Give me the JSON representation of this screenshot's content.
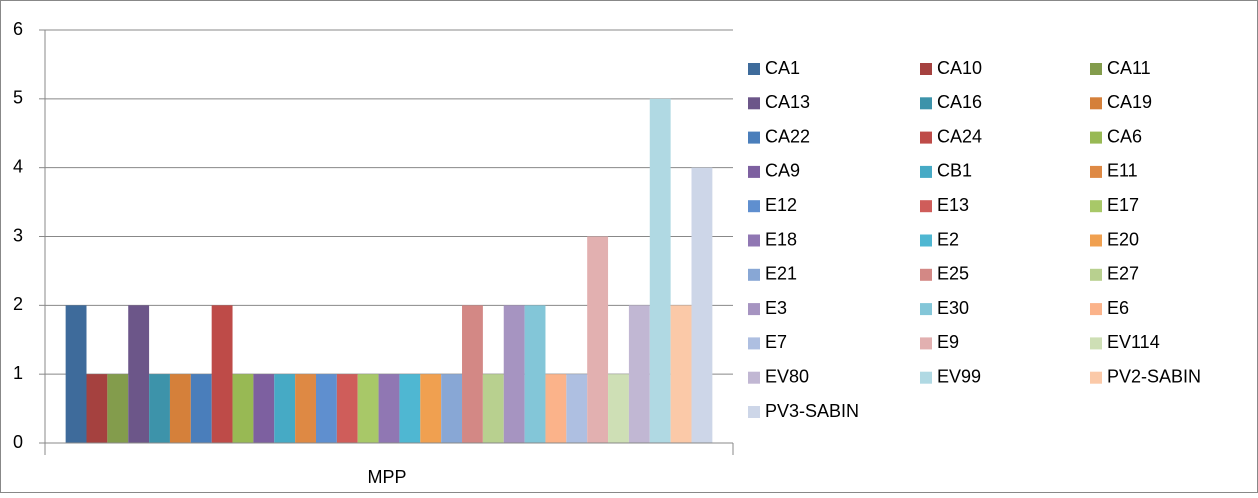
{
  "chart_data": {
    "type": "bar",
    "categories": [
      "MPP"
    ],
    "series": [
      {
        "name": "CA1",
        "color": "#3e6b9b",
        "values": [
          2
        ]
      },
      {
        "name": "CA10",
        "color": "#a5413f",
        "values": [
          1
        ]
      },
      {
        "name": "CA11",
        "color": "#839c4c",
        "values": [
          1
        ]
      },
      {
        "name": "CA13",
        "color": "#6c5689",
        "values": [
          2
        ]
      },
      {
        "name": "CA16",
        "color": "#3d93aa",
        "values": [
          1
        ]
      },
      {
        "name": "CA19",
        "color": "#d5803a",
        "values": [
          1
        ]
      },
      {
        "name": "CA22",
        "color": "#4a7ebb",
        "values": [
          1
        ]
      },
      {
        "name": "CA24",
        "color": "#be4b48",
        "values": [
          2
        ]
      },
      {
        "name": "CA6",
        "color": "#98b954",
        "values": [
          1
        ]
      },
      {
        "name": "CA9",
        "color": "#7d60a0",
        "values": [
          1
        ]
      },
      {
        "name": "CB1",
        "color": "#46aac5",
        "values": [
          1
        ]
      },
      {
        "name": "E11",
        "color": "#de8944",
        "values": [
          1
        ]
      },
      {
        "name": "E12",
        "color": "#5f8fcf",
        "values": [
          1
        ]
      },
      {
        "name": "E13",
        "color": "#cf5d5a",
        "values": [
          1
        ]
      },
      {
        "name": "E17",
        "color": "#a8c868",
        "values": [
          1
        ]
      },
      {
        "name": "E18",
        "color": "#9077b3",
        "values": [
          1
        ]
      },
      {
        "name": "E2",
        "color": "#4fb7d2",
        "values": [
          1
        ]
      },
      {
        "name": "E20",
        "color": "#f0a050",
        "values": [
          1
        ]
      },
      {
        "name": "E21",
        "color": "#88a7d5",
        "values": [
          1
        ]
      },
      {
        "name": "E25",
        "color": "#d38885",
        "values": [
          2
        ]
      },
      {
        "name": "E27",
        "color": "#b8d08f",
        "values": [
          1
        ]
      },
      {
        "name": "E3",
        "color": "#a694c1",
        "values": [
          2
        ]
      },
      {
        "name": "E30",
        "color": "#83c6d8",
        "values": [
          2
        ]
      },
      {
        "name": "E6",
        "color": "#fbb38a",
        "values": [
          1
        ]
      },
      {
        "name": "E7",
        "color": "#aebfe1",
        "values": [
          1
        ]
      },
      {
        "name": "E9",
        "color": "#e2b0b0",
        "values": [
          3
        ]
      },
      {
        "name": "EV114",
        "color": "#cedfb5",
        "values": [
          1
        ]
      },
      {
        "name": "EV80",
        "color": "#c1b7d3",
        "values": [
          2
        ]
      },
      {
        "name": "EV99",
        "color": "#b0d9e3",
        "values": [
          5
        ]
      },
      {
        "name": "PV2-SABIN",
        "color": "#fbc9a8",
        "values": [
          2
        ]
      },
      {
        "name": "PV3-SABIN",
        "color": "#cdd6e8",
        "values": [
          4
        ]
      }
    ],
    "ylim": [
      0,
      6
    ],
    "yticks": [
      0,
      1,
      2,
      3,
      4,
      5,
      6
    ],
    "grid": true,
    "legend": "right"
  }
}
